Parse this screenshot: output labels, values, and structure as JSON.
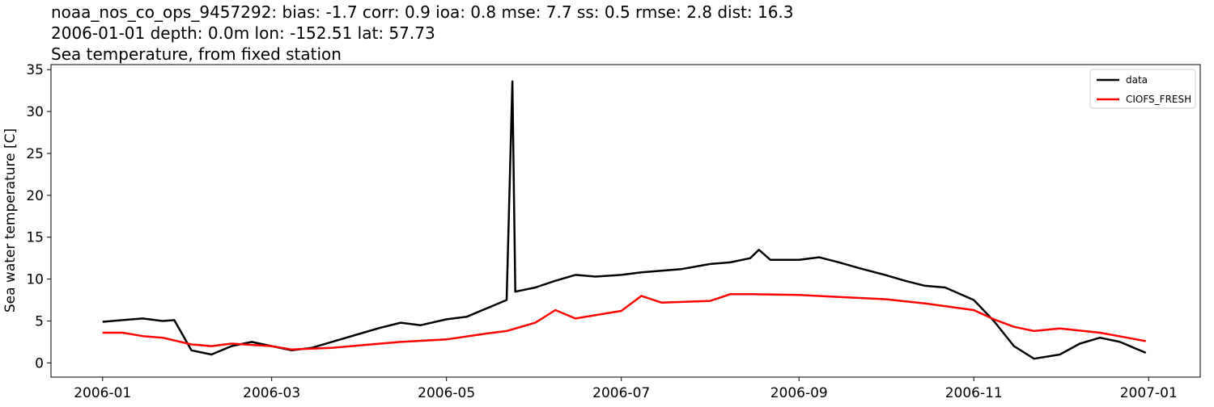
{
  "chart_data": {
    "type": "line",
    "title": "noaa_nos_co_ops_9457292: bias: -1.7  corr: 0.9  ioa: 0.8  mse: 7.7  ss: 0.5  rmse: 2.8  dist: 16.3",
    "subtitle": "2006-01-01 depth: 0.0m lon: -152.51 lat: 57.73",
    "subtitle2": "Sea temperature, from fixed station",
    "y_label": "Sea water temperature [C]",
    "legend": "upper right",
    "xlim": [
      "2005-12-14",
      "2007-01-19"
    ],
    "xticks": [
      "2006-01",
      "2006-03",
      "2006-05",
      "2006-07",
      "2006-09",
      "2006-11",
      "2007-01"
    ],
    "ylim": [
      -1.7,
      35.6
    ],
    "yticks": [
      0,
      5,
      10,
      15,
      20,
      25,
      30,
      35
    ],
    "series": [
      {
        "name": "data",
        "color": "#000000",
        "x": [
          "2006-01-01",
          "2006-01-08",
          "2006-01-15",
          "2006-01-22",
          "2006-01-26",
          "2006-02-01",
          "2006-02-08",
          "2006-02-15",
          "2006-02-22",
          "2006-03-01",
          "2006-03-08",
          "2006-03-15",
          "2006-03-22",
          "2006-04-01",
          "2006-04-08",
          "2006-04-15",
          "2006-04-22",
          "2006-05-01",
          "2006-05-08",
          "2006-05-15",
          "2006-05-22",
          "2006-05-24",
          "2006-05-25",
          "2006-06-01",
          "2006-06-08",
          "2006-06-15",
          "2006-06-22",
          "2006-07-01",
          "2006-07-08",
          "2006-07-15",
          "2006-07-22",
          "2006-08-01",
          "2006-08-08",
          "2006-08-15",
          "2006-08-18",
          "2006-08-22",
          "2006-09-01",
          "2006-09-08",
          "2006-09-15",
          "2006-09-22",
          "2006-10-01",
          "2006-10-08",
          "2006-10-15",
          "2006-10-22",
          "2006-11-01",
          "2006-11-08",
          "2006-11-15",
          "2006-11-22",
          "2006-12-01",
          "2006-12-08",
          "2006-12-15",
          "2006-12-22",
          "2006-12-31"
        ],
        "values": [
          4.9,
          5.1,
          5.3,
          5.0,
          5.1,
          1.5,
          1.0,
          2.0,
          2.5,
          2.0,
          1.5,
          1.8,
          2.5,
          3.5,
          4.2,
          4.8,
          4.5,
          5.2,
          5.5,
          6.5,
          7.5,
          33.6,
          8.5,
          9.0,
          9.8,
          10.5,
          10.3,
          10.5,
          10.8,
          11.0,
          11.2,
          11.8,
          12.0,
          12.5,
          13.5,
          12.3,
          12.3,
          12.6,
          12.0,
          11.3,
          10.5,
          9.8,
          9.2,
          9.0,
          7.5,
          5.0,
          2.0,
          0.5,
          1.0,
          2.3,
          3.0,
          2.5,
          1.2
        ]
      },
      {
        "name": "CIOFS_FRESH",
        "color": "#ff0000",
        "x": [
          "2006-01-01",
          "2006-01-08",
          "2006-01-15",
          "2006-01-22",
          "2006-02-01",
          "2006-02-08",
          "2006-02-15",
          "2006-03-01",
          "2006-03-08",
          "2006-03-22",
          "2006-04-01",
          "2006-04-15",
          "2006-05-01",
          "2006-05-15",
          "2006-05-22",
          "2006-06-01",
          "2006-06-08",
          "2006-06-15",
          "2006-07-01",
          "2006-07-08",
          "2006-07-15",
          "2006-08-01",
          "2006-08-08",
          "2006-08-15",
          "2006-09-01",
          "2006-10-01",
          "2006-10-15",
          "2006-11-01",
          "2006-11-08",
          "2006-11-15",
          "2006-11-22",
          "2006-12-01",
          "2006-12-15",
          "2006-12-31"
        ],
        "values": [
          3.6,
          3.6,
          3.2,
          3.0,
          2.2,
          2.0,
          2.3,
          2.0,
          1.6,
          1.8,
          2.1,
          2.5,
          2.8,
          3.5,
          3.8,
          4.8,
          6.3,
          5.3,
          6.2,
          8.0,
          7.2,
          7.4,
          8.2,
          8.2,
          8.1,
          7.6,
          7.1,
          6.3,
          5.2,
          4.3,
          3.8,
          4.1,
          3.6,
          2.6
        ]
      }
    ]
  }
}
